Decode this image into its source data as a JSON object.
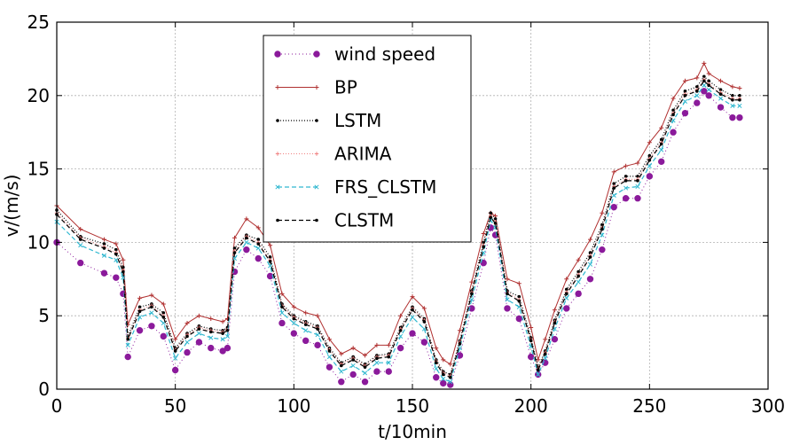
{
  "chart_data": {
    "type": "line",
    "title": "",
    "xlabel": "t/10min",
    "ylabel": "v/(m/s)",
    "xlim": [
      0,
      300
    ],
    "ylim": [
      0,
      25
    ],
    "xticks": [
      "0",
      "50",
      "100",
      "150",
      "200",
      "250",
      "300"
    ],
    "yticks": [
      "0",
      "5",
      "10",
      "15",
      "20",
      "25"
    ],
    "grid": true,
    "legend_position": "upper-center",
    "x": [
      0,
      10,
      20,
      25,
      28,
      30,
      35,
      40,
      45,
      50,
      55,
      60,
      65,
      70,
      72,
      75,
      80,
      85,
      90,
      95,
      100,
      105,
      110,
      115,
      120,
      125,
      130,
      135,
      140,
      145,
      150,
      155,
      160,
      163,
      166,
      170,
      175,
      180,
      183,
      185,
      190,
      195,
      200,
      203,
      206,
      210,
      215,
      220,
      225,
      230,
      235,
      240,
      245,
      250,
      255,
      260,
      265,
      270,
      273,
      275,
      280,
      285,
      288
    ],
    "series": [
      {
        "name": "wind speed",
        "color": "#8b1a9b",
        "values": [
          10.0,
          8.6,
          7.9,
          7.6,
          6.5,
          2.2,
          4.0,
          4.3,
          3.6,
          1.3,
          2.5,
          3.2,
          2.8,
          2.6,
          2.8,
          8.0,
          9.5,
          8.9,
          7.7,
          4.5,
          3.8,
          3.3,
          3.0,
          1.5,
          0.5,
          1.0,
          0.5,
          1.2,
          1.2,
          2.8,
          3.8,
          3.2,
          0.8,
          0.4,
          0.3,
          2.3,
          5.5,
          8.6,
          11.0,
          10.5,
          5.5,
          4.8,
          2.2,
          1.0,
          1.8,
          3.4,
          5.5,
          6.5,
          7.5,
          9.5,
          12.4,
          13.0,
          13.0,
          14.5,
          15.5,
          17.5,
          18.8,
          19.5,
          20.3,
          20.0,
          19.2,
          18.5,
          18.5
        ]
      },
      {
        "name": "BP",
        "color": "#b03030",
        "values": [
          12.5,
          10.9,
          10.2,
          9.9,
          8.8,
          4.4,
          6.2,
          6.4,
          5.8,
          3.4,
          4.5,
          5.0,
          4.8,
          4.6,
          4.8,
          10.3,
          11.6,
          11.0,
          9.8,
          6.5,
          5.6,
          5.2,
          5.0,
          3.4,
          2.4,
          2.8,
          2.3,
          3.0,
          3.0,
          5.0,
          6.3,
          5.5,
          2.8,
          2.0,
          1.7,
          4.0,
          7.3,
          10.6,
          12.0,
          11.8,
          7.5,
          7.2,
          4.2,
          2.0,
          3.4,
          5.4,
          7.5,
          8.8,
          10.2,
          12.0,
          14.8,
          15.2,
          15.4,
          16.8,
          17.8,
          19.8,
          21.0,
          21.2,
          22.2,
          21.5,
          21.0,
          20.6,
          20.5
        ]
      },
      {
        "name": "LSTM",
        "color": "#000000",
        "values": [
          12.2,
          10.4,
          9.9,
          9.5,
          8.3,
          3.6,
          5.6,
          5.8,
          5.2,
          2.8,
          3.8,
          4.3,
          4.1,
          4.0,
          4.2,
          9.6,
          10.5,
          10.2,
          9.0,
          5.8,
          5.0,
          4.6,
          4.3,
          2.8,
          1.8,
          2.2,
          1.7,
          2.3,
          2.4,
          4.2,
          5.6,
          4.8,
          2.0,
          1.2,
          1.0,
          3.3,
          6.7,
          10.0,
          12.0,
          11.6,
          6.7,
          6.3,
          3.5,
          1.5,
          2.6,
          4.7,
          6.8,
          8.0,
          9.3,
          11.2,
          14.0,
          14.5,
          14.5,
          15.9,
          17.0,
          19.0,
          20.3,
          20.6,
          21.3,
          21.0,
          20.4,
          20.0,
          20.0
        ]
      },
      {
        "name": "ARIMA",
        "color": "#f08080",
        "values": [
          12.0,
          10.3,
          9.7,
          9.3,
          8.1,
          3.5,
          5.4,
          5.7,
          5.0,
          2.7,
          3.7,
          4.2,
          4.0,
          3.9,
          4.1,
          9.4,
          10.4,
          10.0,
          8.8,
          5.7,
          4.9,
          4.5,
          4.2,
          2.7,
          1.7,
          2.1,
          1.6,
          2.2,
          2.3,
          4.1,
          5.5,
          4.7,
          1.9,
          1.1,
          0.9,
          3.2,
          6.6,
          9.8,
          11.8,
          11.4,
          6.6,
          6.1,
          3.4,
          1.4,
          2.5,
          4.6,
          6.6,
          7.8,
          9.1,
          11.0,
          13.8,
          14.3,
          14.3,
          15.7,
          16.8,
          18.8,
          20.1,
          20.4,
          21.1,
          20.8,
          20.2,
          19.8,
          19.8
        ]
      },
      {
        "name": "FRS_CLSTM",
        "color": "#30b8d0",
        "values": [
          11.4,
          9.8,
          9.1,
          8.8,
          7.6,
          3.0,
          4.9,
          5.2,
          4.5,
          2.1,
          3.2,
          3.8,
          3.5,
          3.4,
          3.6,
          8.9,
          10.0,
          9.6,
          8.4,
          5.2,
          4.5,
          4.0,
          3.7,
          2.2,
          1.2,
          1.6,
          1.1,
          1.8,
          1.8,
          3.6,
          4.9,
          4.1,
          1.4,
          0.7,
          0.5,
          2.8,
          6.1,
          9.3,
          11.5,
          11.0,
          6.1,
          5.6,
          2.9,
          1.0,
          2.1,
          4.1,
          6.2,
          7.3,
          8.5,
          10.5,
          13.2,
          13.7,
          13.8,
          15.2,
          16.3,
          18.3,
          19.6,
          20.0,
          20.7,
          20.4,
          19.8,
          19.3,
          19.3
        ]
      },
      {
        "name": "CLSTM",
        "color": "#000000",
        "values": [
          11.9,
          10.2,
          9.6,
          9.2,
          8.0,
          3.4,
          5.3,
          5.6,
          4.9,
          2.6,
          3.6,
          4.1,
          3.9,
          3.8,
          4.0,
          9.3,
          10.3,
          9.9,
          8.7,
          5.6,
          4.8,
          4.4,
          4.1,
          2.6,
          1.6,
          2.0,
          1.5,
          2.1,
          2.2,
          4.0,
          5.4,
          4.6,
          1.8,
          1.0,
          0.8,
          3.1,
          6.5,
          9.7,
          11.7,
          11.3,
          6.5,
          6.0,
          3.3,
          1.3,
          2.4,
          4.5,
          6.5,
          7.7,
          9.0,
          10.9,
          13.7,
          14.2,
          14.2,
          15.6,
          16.7,
          18.7,
          20.0,
          20.3,
          21.0,
          20.7,
          20.1,
          19.7,
          19.7
        ]
      }
    ]
  }
}
